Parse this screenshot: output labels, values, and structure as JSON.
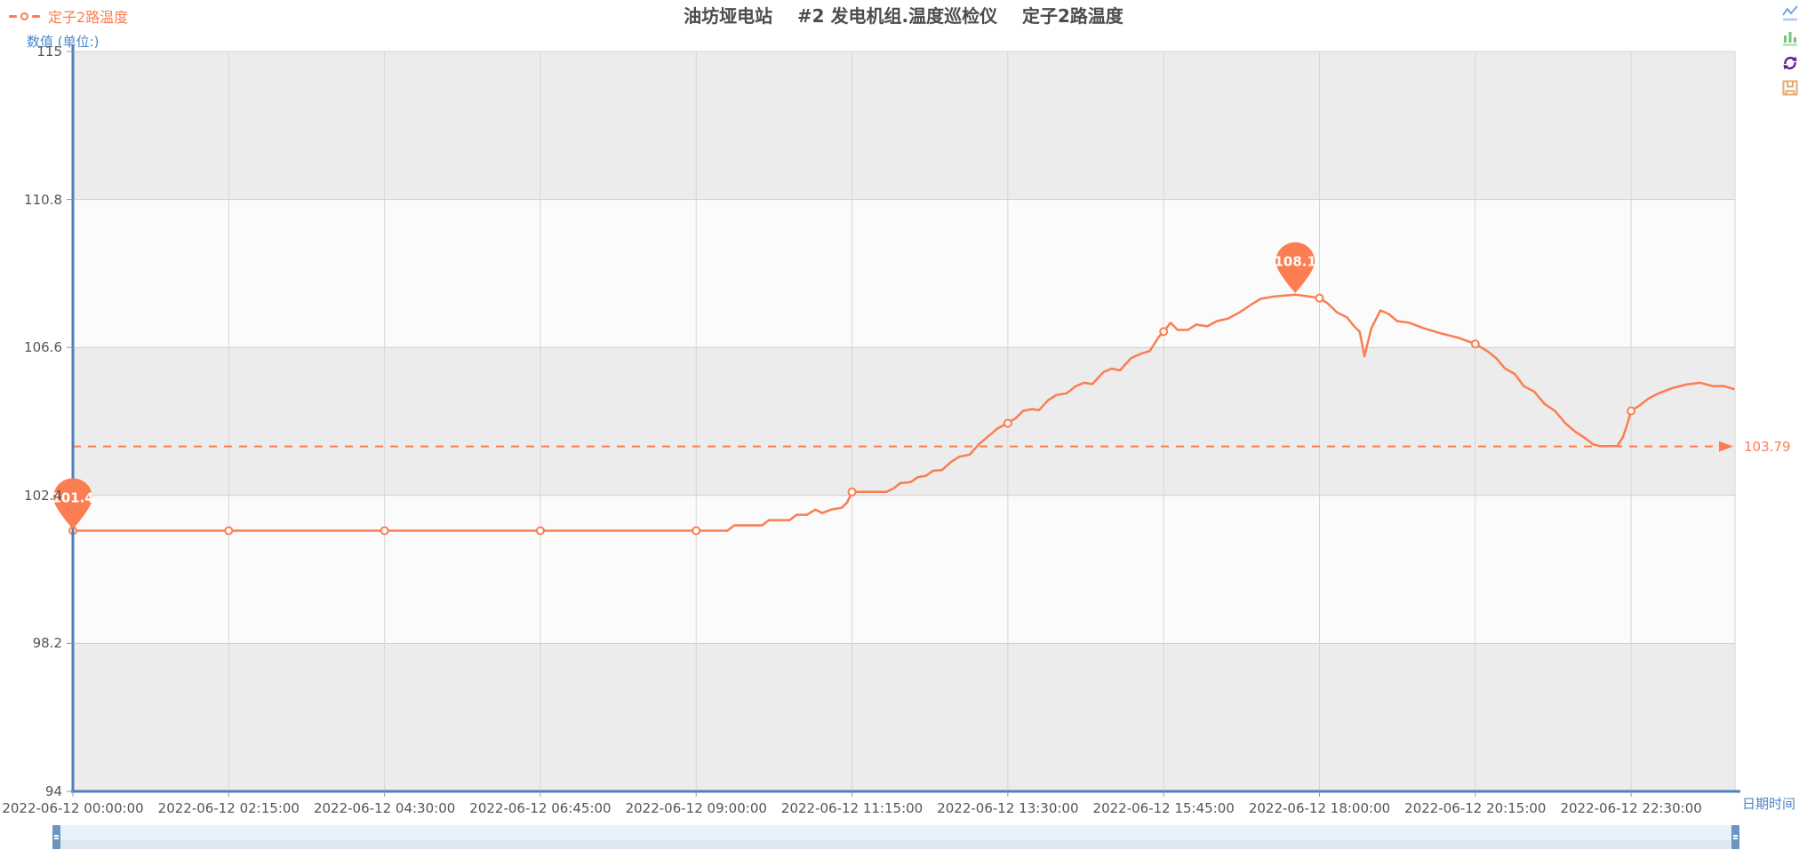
{
  "title": "油坊垭电站    #2 发电机组.温度巡检仪    定子2路温度",
  "legend": {
    "label": "定子2路温度"
  },
  "y_axis": {
    "name": "数值 (单位:)",
    "ticks": [
      "94",
      "98.2",
      "102.4",
      "106.6",
      "110.8",
      "115"
    ],
    "tick_values": [
      94,
      98.2,
      102.4,
      106.6,
      110.8,
      115
    ]
  },
  "x_axis": {
    "name": "日期时间",
    "labels": [
      "2022-06-12 00:00:00",
      "2022-06-12 02:15:00",
      "2022-06-12 04:30:00",
      "2022-06-12 06:45:00",
      "2022-06-12 09:00:00",
      "2022-06-12 11:15:00",
      "2022-06-12 13:30:00",
      "2022-06-12 15:45:00",
      "2022-06-12 18:00:00",
      "2022-06-12 20:15:00",
      "2022-06-12 22:30:00"
    ],
    "tick_hours": [
      0,
      2.25,
      4.5,
      6.75,
      9,
      11.25,
      13.5,
      15.75,
      18,
      20.25,
      22.5
    ]
  },
  "markers": {
    "max_label": "108.1",
    "min_label": "101.4",
    "avg_label": "103.79",
    "max": {
      "time": 17.65,
      "value": 108.1
    },
    "min": {
      "time": 0,
      "value": 101.4
    },
    "avg_value": 103.79
  },
  "toolbox": {
    "icons": [
      "line-chart-icon",
      "bar-chart-icon",
      "restore-icon",
      "save-image-icon"
    ]
  },
  "colors": {
    "series": "#FB7D51",
    "axis_line": "#4D7FBE",
    "axis_name": "#4A86C8",
    "tick_label": "#555555",
    "grid_line": "#D6D6D6",
    "band_gray": "#ECECEC",
    "band_light": "#FBFBFB",
    "title": "#4C4C4C",
    "datazoom_fill": "#E9F1FA",
    "datazoom_handle": "#6C96C2",
    "toolbox_blue": "#6FA7E0",
    "toolbox_green": "#77C37A",
    "toolbox_purple": "#5C1E9E",
    "toolbox_orange": "#E8AA70"
  },
  "chart_data": {
    "type": "line",
    "title": "油坊垭电站 #2 发电机组.温度巡检仪 定子2路温度",
    "xlabel": "日期时间",
    "ylabel": "数值 (单位:)",
    "ylim": [
      94,
      115
    ],
    "x_range_hours": [
      0,
      24
    ],
    "grid": true,
    "legend_position": "top-left",
    "series_name": "定子2路温度",
    "markline_avg": 103.79,
    "markpoint_max": 108.1,
    "markpoint_min": 101.4,
    "points": [
      [
        0,
        101.4
      ],
      [
        2.25,
        101.4
      ],
      [
        4.5,
        101.4
      ],
      [
        6.75,
        101.4
      ],
      [
        9,
        101.4
      ],
      [
        9.45,
        101.4
      ],
      [
        9.55,
        101.55
      ],
      [
        9.95,
        101.55
      ],
      [
        10.05,
        101.7
      ],
      [
        10.35,
        101.7
      ],
      [
        10.45,
        101.85
      ],
      [
        10.6,
        101.85
      ],
      [
        10.72,
        102.0
      ],
      [
        10.82,
        101.9
      ],
      [
        10.95,
        102.0
      ],
      [
        11.1,
        102.05
      ],
      [
        11.18,
        102.2
      ],
      [
        11.25,
        102.5
      ],
      [
        11.75,
        102.5
      ],
      [
        11.85,
        102.6
      ],
      [
        11.95,
        102.75
      ],
      [
        12.1,
        102.78
      ],
      [
        12.2,
        102.92
      ],
      [
        12.32,
        102.96
      ],
      [
        12.42,
        103.1
      ],
      [
        12.55,
        103.12
      ],
      [
        12.68,
        103.35
      ],
      [
        12.8,
        103.5
      ],
      [
        12.95,
        103.56
      ],
      [
        13.08,
        103.85
      ],
      [
        13.2,
        104.05
      ],
      [
        13.35,
        104.3
      ],
      [
        13.5,
        104.45
      ],
      [
        13.62,
        104.6
      ],
      [
        13.72,
        104.8
      ],
      [
        13.85,
        104.85
      ],
      [
        13.95,
        104.82
      ],
      [
        14.08,
        105.1
      ],
      [
        14.2,
        105.25
      ],
      [
        14.35,
        105.3
      ],
      [
        14.48,
        105.5
      ],
      [
        14.6,
        105.6
      ],
      [
        14.72,
        105.56
      ],
      [
        14.88,
        105.9
      ],
      [
        15.0,
        106.0
      ],
      [
        15.12,
        105.95
      ],
      [
        15.28,
        106.3
      ],
      [
        15.42,
        106.42
      ],
      [
        15.55,
        106.5
      ],
      [
        15.68,
        106.9
      ],
      [
        15.75,
        107.05
      ],
      [
        15.85,
        107.3
      ],
      [
        15.95,
        107.1
      ],
      [
        16.1,
        107.1
      ],
      [
        16.22,
        107.25
      ],
      [
        16.38,
        107.2
      ],
      [
        16.52,
        107.35
      ],
      [
        16.68,
        107.42
      ],
      [
        16.85,
        107.6
      ],
      [
        17.0,
        107.8
      ],
      [
        17.15,
        107.98
      ],
      [
        17.35,
        108.05
      ],
      [
        17.65,
        108.1
      ],
      [
        17.85,
        108.05
      ],
      [
        18.0,
        108.0
      ],
      [
        18.12,
        107.85
      ],
      [
        18.25,
        107.6
      ],
      [
        18.4,
        107.45
      ],
      [
        18.5,
        107.2
      ],
      [
        18.58,
        107.05
      ],
      [
        18.65,
        106.35
      ],
      [
        18.75,
        107.15
      ],
      [
        18.88,
        107.65
      ],
      [
        19.0,
        107.55
      ],
      [
        19.12,
        107.35
      ],
      [
        19.3,
        107.3
      ],
      [
        19.5,
        107.15
      ],
      [
        19.75,
        107.0
      ],
      [
        20.0,
        106.88
      ],
      [
        20.25,
        106.7
      ],
      [
        20.42,
        106.5
      ],
      [
        20.55,
        106.3
      ],
      [
        20.68,
        106.0
      ],
      [
        20.82,
        105.85
      ],
      [
        20.95,
        105.5
      ],
      [
        21.1,
        105.35
      ],
      [
        21.25,
        105.0
      ],
      [
        21.4,
        104.8
      ],
      [
        21.55,
        104.45
      ],
      [
        21.7,
        104.2
      ],
      [
        21.82,
        104.05
      ],
      [
        21.95,
        103.85
      ],
      [
        22.05,
        103.8
      ],
      [
        22.3,
        103.8
      ],
      [
        22.38,
        104.05
      ],
      [
        22.45,
        104.45
      ],
      [
        22.5,
        104.8
      ],
      [
        22.62,
        104.95
      ],
      [
        22.75,
        105.15
      ],
      [
        22.9,
        105.3
      ],
      [
        23.1,
        105.45
      ],
      [
        23.3,
        105.55
      ],
      [
        23.5,
        105.6
      ],
      [
        23.68,
        105.5
      ],
      [
        23.85,
        105.5
      ],
      [
        23.98,
        105.42
      ]
    ],
    "symbol_points": [
      [
        0,
        101.4
      ],
      [
        2.25,
        101.4
      ],
      [
        4.5,
        101.4
      ],
      [
        6.75,
        101.4
      ],
      [
        9,
        101.4
      ],
      [
        11.25,
        102.5
      ],
      [
        13.5,
        104.45
      ],
      [
        15.75,
        107.05
      ],
      [
        18,
        108.0
      ],
      [
        20.25,
        106.7
      ],
      [
        22.5,
        104.8
      ]
    ]
  }
}
